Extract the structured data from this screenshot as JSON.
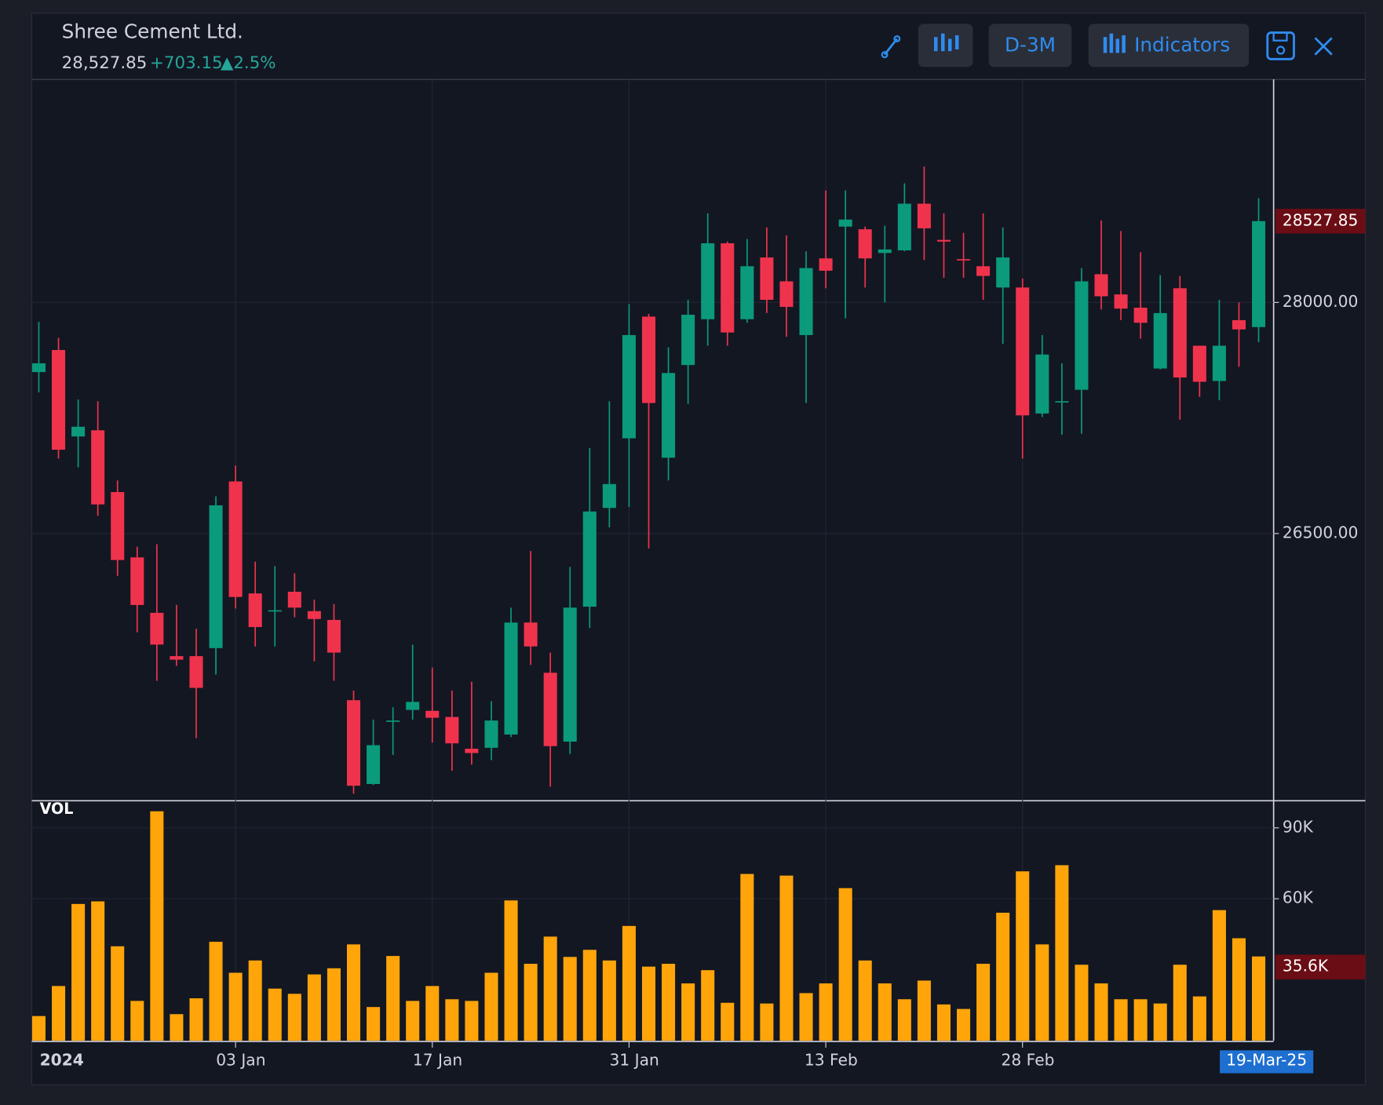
{
  "header": {
    "last": "28,527.85",
    "change": "+703.15",
    "change_pct": "▲2.5%"
  },
  "toolbar": {
    "interval": "D-3M",
    "indicators": "Indicators"
  },
  "chart_data": {
    "type": "candlestick",
    "title": "Shree Cement Ltd.",
    "categories": [
      "2024",
      null,
      null,
      null,
      null,
      null,
      null,
      null,
      null,
      null,
      "03 Jan",
      null,
      null,
      null,
      null,
      null,
      null,
      null,
      null,
      null,
      "17 Jan",
      null,
      null,
      null,
      null,
      null,
      null,
      null,
      null,
      null,
      "31 Jan",
      null,
      null,
      null,
      null,
      null,
      null,
      null,
      null,
      null,
      "13 Feb",
      null,
      null,
      null,
      null,
      null,
      null,
      null,
      null,
      null,
      "28 Feb",
      null,
      null,
      null,
      null,
      null,
      null,
      null,
      null,
      null,
      null,
      null,
      "19-Mar-25"
    ],
    "open": [
      27548,
      27691,
      27130,
      27170,
      26769,
      26345,
      25985,
      25704,
      25704,
      25756,
      26838,
      26111,
      25996,
      26122,
      25996,
      25939,
      25418,
      24874,
      25281,
      25355,
      25349,
      25309,
      25103,
      25109,
      25195,
      25922,
      25596,
      25149,
      26025,
      26666,
      27118,
      27908,
      26992,
      27594,
      27891,
      28384,
      27891,
      28292,
      28137,
      27788,
      28286,
      28492,
      28475,
      28321,
      28338,
      28641,
      28406,
      28281,
      28235,
      28097,
      28097,
      27279,
      27353,
      27433,
      28183,
      28052,
      27966,
      27571,
      28092,
      27719,
      27490,
      27885,
      27840
    ],
    "high": [
      27874,
      27771,
      27370,
      27359,
      26844,
      26414,
      26431,
      26036,
      25882,
      26741,
      26941,
      26317,
      26288,
      26242,
      26071,
      26042,
      25481,
      25292,
      25372,
      25779,
      25630,
      25481,
      25538,
      25412,
      26019,
      26386,
      25727,
      26283,
      27055,
      27359,
      27989,
      27926,
      27708,
      28017,
      28578,
      28395,
      28412,
      28487,
      28435,
      28332,
      28727,
      28727,
      28492,
      28498,
      28773,
      28882,
      28578,
      28452,
      28578,
      28487,
      28155,
      27788,
      27605,
      28223,
      28532,
      28464,
      28326,
      28177,
      28172,
      27719,
      28017,
      28000,
      28676
    ],
    "low": [
      27416,
      26987,
      26929,
      26615,
      26225,
      25859,
      25544,
      25641,
      25172,
      25584,
      26013,
      25767,
      25767,
      25956,
      25670,
      25544,
      24811,
      24868,
      25063,
      25292,
      25143,
      24960,
      25000,
      25029,
      25178,
      25647,
      24857,
      25069,
      25887,
      26540,
      26672,
      26403,
      26844,
      27342,
      27719,
      27719,
      27868,
      27931,
      27777,
      27347,
      28092,
      27897,
      28097,
      28000,
      28332,
      28275,
      28160,
      28160,
      28017,
      27731,
      26987,
      27256,
      27141,
      27147,
      27954,
      27885,
      27765,
      27565,
      27239,
      27387,
      27365,
      27582,
      27742
    ],
    "close": [
      27605,
      27044,
      27193,
      26689,
      26328,
      26036,
      25779,
      25681,
      25498,
      26683,
      26088,
      25893,
      26002,
      26019,
      25945,
      25727,
      24863,
      25126,
      25286,
      25407,
      25304,
      25138,
      25075,
      25286,
      25922,
      25767,
      25120,
      26019,
      26643,
      26821,
      27788,
      27347,
      27542,
      27920,
      28384,
      27805,
      28235,
      28017,
      27971,
      28223,
      28206,
      28538,
      28286,
      28344,
      28641,
      28481,
      28395,
      28275,
      28172,
      28292,
      27267,
      27662,
      27359,
      28137,
      28040,
      27960,
      27868,
      27931,
      27513,
      27485,
      27719,
      27825,
      28527.85
    ],
    "up_color": "#0b9a7c",
    "down_color": "#f0334d",
    "ylim": [
      24771,
      29448
    ],
    "yticks": [
      {
        "value": 26500,
        "label": "26500.00"
      },
      {
        "value": 28000,
        "label": "28000.00"
      }
    ],
    "grid": true,
    "volume": {
      "name": "VOL",
      "color": "#ffa50a",
      "values": [
        10400,
        23100,
        57800,
        58900,
        39900,
        16800,
        97000,
        11200,
        17900,
        41800,
        28700,
        33900,
        22000,
        19800,
        28000,
        30600,
        40700,
        14200,
        35800,
        16800,
        23100,
        17500,
        16800,
        28700,
        59300,
        32500,
        44000,
        35400,
        38400,
        33900,
        48500,
        31300,
        32500,
        24200,
        29800,
        16000,
        70500,
        15700,
        69800,
        20100,
        24200,
        64500,
        33900,
        24200,
        17500,
        25400,
        15300,
        13400,
        32500,
        54100,
        71600,
        40700,
        74200,
        32100,
        24200,
        17500,
        17500,
        15700,
        32100,
        18700,
        55200,
        43300,
        35600
      ],
      "value_labels": [
        null,
        null,
        null,
        null,
        null,
        null,
        null,
        null,
        null,
        null,
        null,
        null,
        null,
        null,
        null,
        null,
        null,
        null,
        null,
        null,
        null,
        null,
        null,
        null,
        null,
        null,
        null,
        null,
        null,
        null,
        null,
        null,
        null,
        null,
        null,
        null,
        null,
        null,
        null,
        null,
        null,
        null,
        null,
        null,
        null,
        null,
        null,
        null,
        null,
        null,
        null,
        null,
        null,
        null,
        null,
        null,
        null,
        null,
        null,
        null,
        null,
        null,
        "35.6K"
      ],
      "ylim": [
        0,
        101083
      ],
      "yticks": [
        {
          "value": 60000,
          "label": "60K"
        },
        {
          "value": 90000,
          "label": "90K"
        }
      ]
    }
  }
}
